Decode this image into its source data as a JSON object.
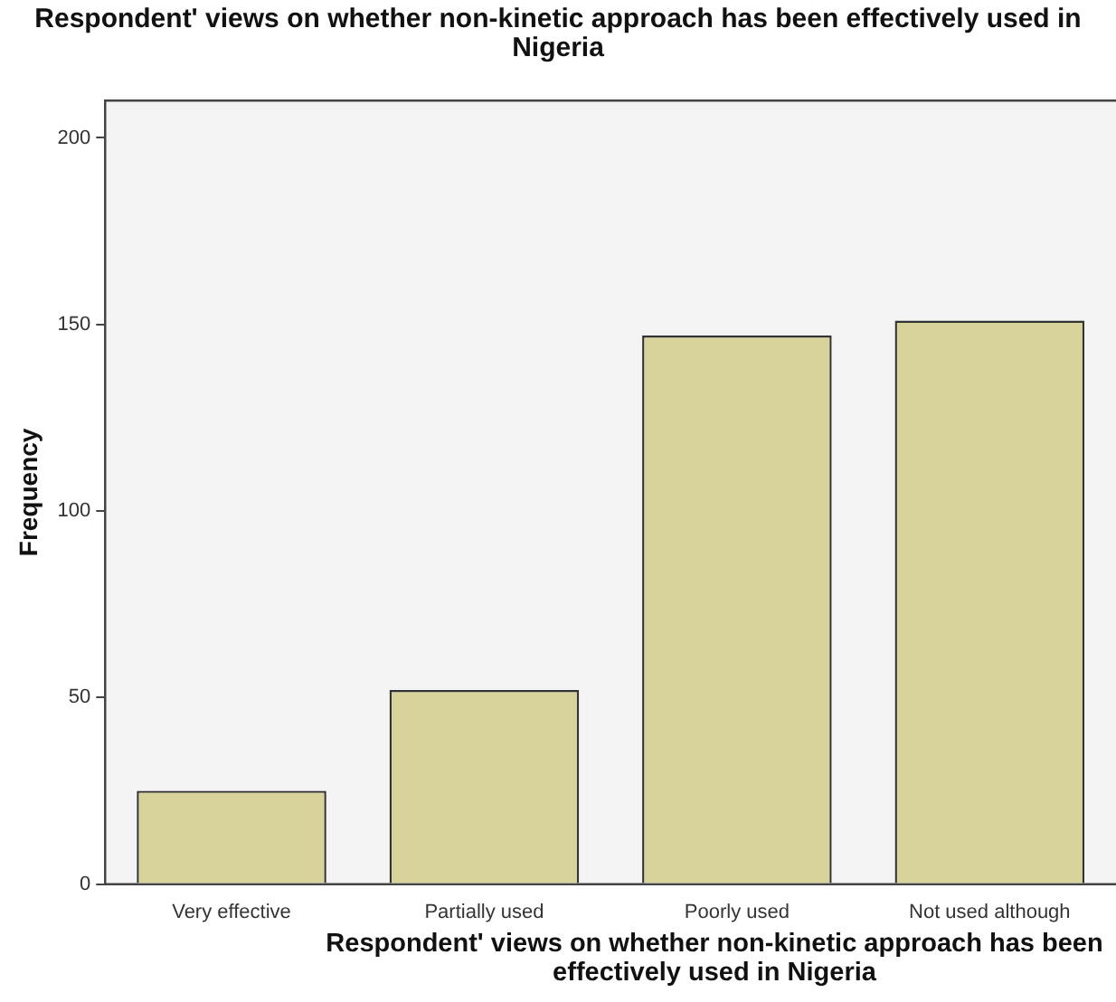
{
  "chart_data": {
    "type": "bar",
    "title": "Respondent' views on whether non-kinetic approach has been effectively used in Nigeria",
    "xlabel": "Respondent' views on whether non-kinetic approach has been effectively used in Nigeria",
    "ylabel": "Frequency",
    "categories": [
      "Very effective",
      "Partially used",
      "Poorly used",
      "Not used although"
    ],
    "values": [
      25,
      52,
      147,
      151
    ],
    "color": "#d8d39b",
    "ylim": [
      0,
      210
    ],
    "yticks": [
      0,
      50,
      100,
      150,
      200
    ],
    "grid": false,
    "legend": false
  }
}
